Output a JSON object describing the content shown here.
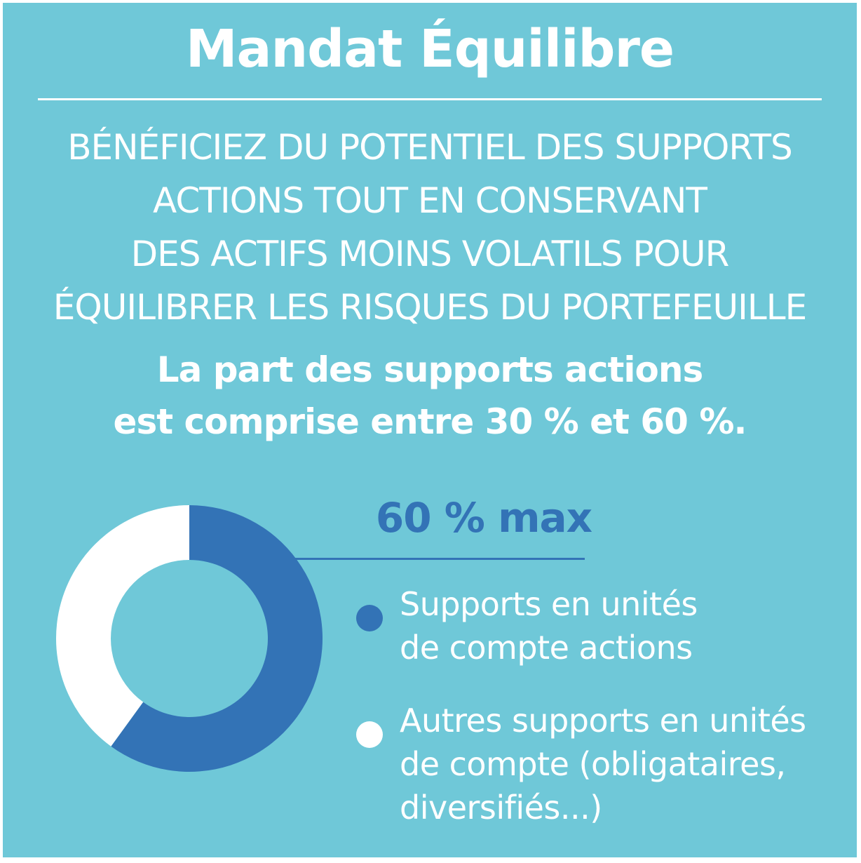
{
  "header": {
    "title": "Mandat Équilibre"
  },
  "intro": {
    "lines": [
      "BÉNÉFICIEZ DU POTENTIEL DES SUPPORTS",
      "ACTIONS TOUT EN CONSERVANT",
      "DES ACTIFS MOINS VOLATILS POUR",
      "ÉQUILIBRER LES RISQUES DU PORTEFEUILLE"
    ]
  },
  "note": {
    "lines": [
      "La part des supports actions",
      "est comprise entre 30 % et 60 %."
    ]
  },
  "chart_data": {
    "type": "pie",
    "donut": true,
    "annotation": "60 % max",
    "slices": [
      {
        "label": "Supports en unités de compte actions",
        "value": 60,
        "color": "#3373b6"
      },
      {
        "label": "Autres supports en unités de compte (obligataires, diversifiés...)",
        "value": 40,
        "color": "#ffffff"
      }
    ],
    "legend": [
      {
        "lines": [
          "Supports en unités",
          "de compte actions"
        ],
        "color": "#3373b6"
      },
      {
        "lines": [
          "Autres supports en unités",
          "de compte (obligataires,",
          "diversifiés...)"
        ],
        "color": "#ffffff"
      }
    ],
    "legend_position": "right"
  },
  "colors": {
    "background": "#6fc8d8",
    "accent": "#3373b6",
    "text": "#ffffff"
  }
}
